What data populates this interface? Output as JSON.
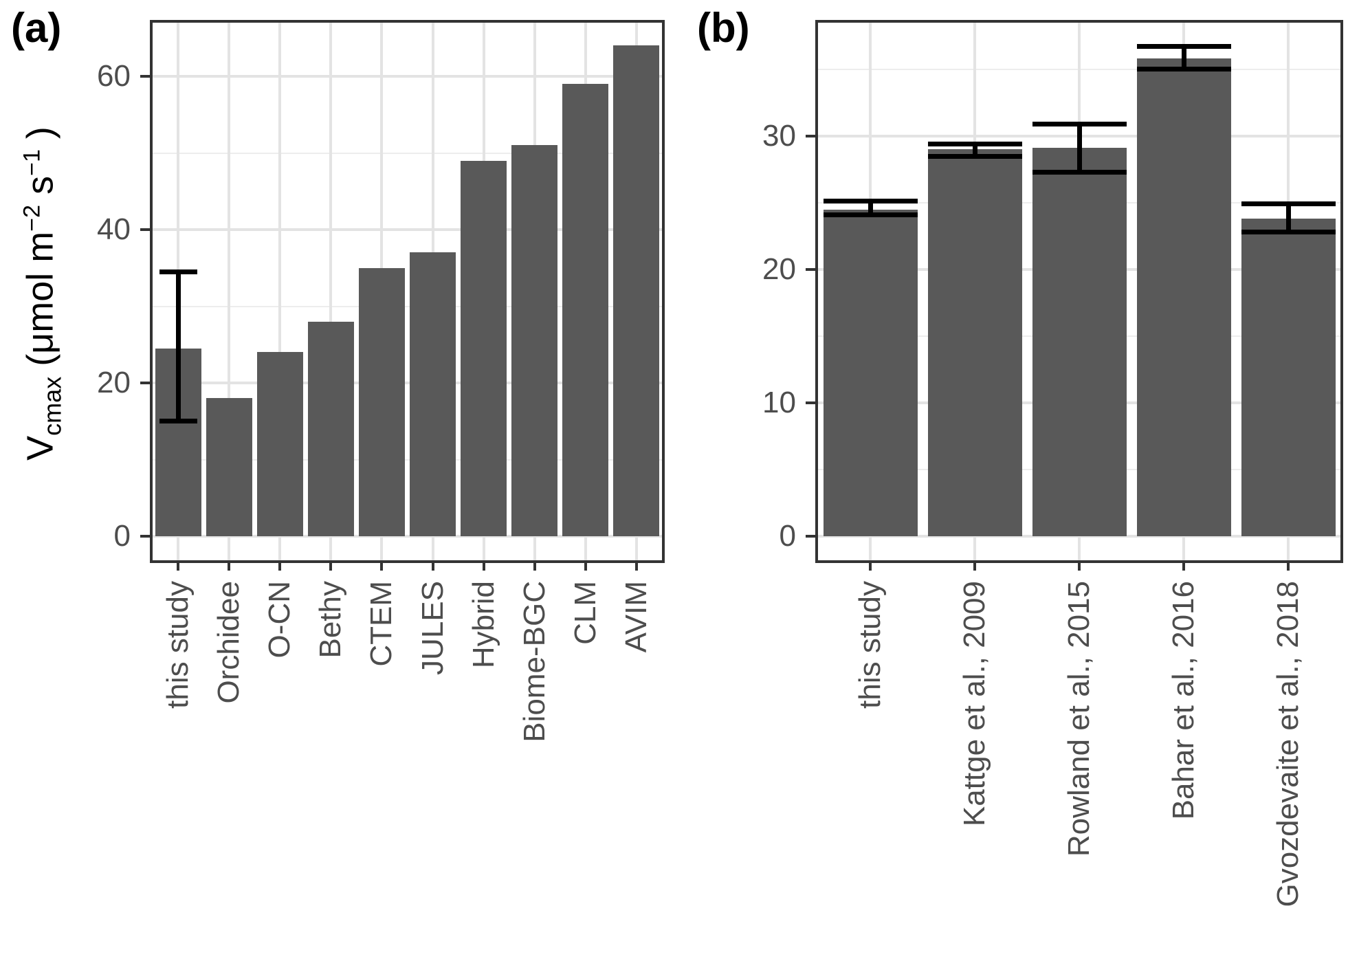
{
  "panel_tags": [
    "(a)",
    "(b)"
  ],
  "y_axis_title": {
    "main": "V",
    "sub": "cmax",
    "seg1": " (μmol m",
    "sup1": "−2",
    "seg2": " s",
    "sup2": "−1",
    "seg3": " )"
  },
  "colors": {
    "bar_fill": "#595959",
    "error_bar": "#000000",
    "panel_border": "#333333",
    "grid_major": "#E3E3E3",
    "grid_minor": "#EDEDED",
    "tick_mark": "#333333",
    "tick_label": "#4D4D4D",
    "axis_title": "#000000",
    "background": "#FFFFFF"
  },
  "chart_data": [
    {
      "type": "bar",
      "panel": "a",
      "title": "",
      "xlabel": "",
      "ylabel": "Vcmax (μmol m−2 s−1)",
      "categories": [
        "this study",
        "Orchidee",
        "O-CN",
        "Bethy",
        "CTEM",
        "JULES",
        "Hybrid",
        "Biome-BGC",
        "CLM",
        "AVIM"
      ],
      "values": [
        24.5,
        18,
        24,
        28,
        35,
        37,
        49,
        51,
        59,
        64
      ],
      "errors": [
        [
          15,
          34.5
        ],
        null,
        null,
        null,
        null,
        null,
        null,
        null,
        null,
        null
      ],
      "yticks": [
        0,
        20,
        40,
        60
      ],
      "yticks_minor": [
        10,
        30,
        50
      ],
      "ylim": [
        0,
        67
      ],
      "grid": true,
      "legend": false
    },
    {
      "type": "bar",
      "panel": "b",
      "title": "",
      "xlabel": "",
      "ylabel": "",
      "categories": [
        "this study",
        "Kattge et al., 2009",
        "Rowland et al., 2015",
        "Bahar et al., 2016",
        "Gvozdevaite et al., 2018"
      ],
      "values": [
        24.5,
        29,
        29.1,
        35.8,
        23.8
      ],
      "errors": [
        [
          24.1,
          25.1
        ],
        [
          28.5,
          29.4
        ],
        [
          27.3,
          30.9
        ],
        [
          35.0,
          36.7
        ],
        [
          22.8,
          24.9
        ]
      ],
      "yticks": [
        0,
        10,
        20,
        30
      ],
      "yticks_minor": [
        5,
        15,
        25,
        35
      ],
      "ylim": [
        0,
        38.5
      ],
      "grid": true,
      "legend": false
    }
  ]
}
